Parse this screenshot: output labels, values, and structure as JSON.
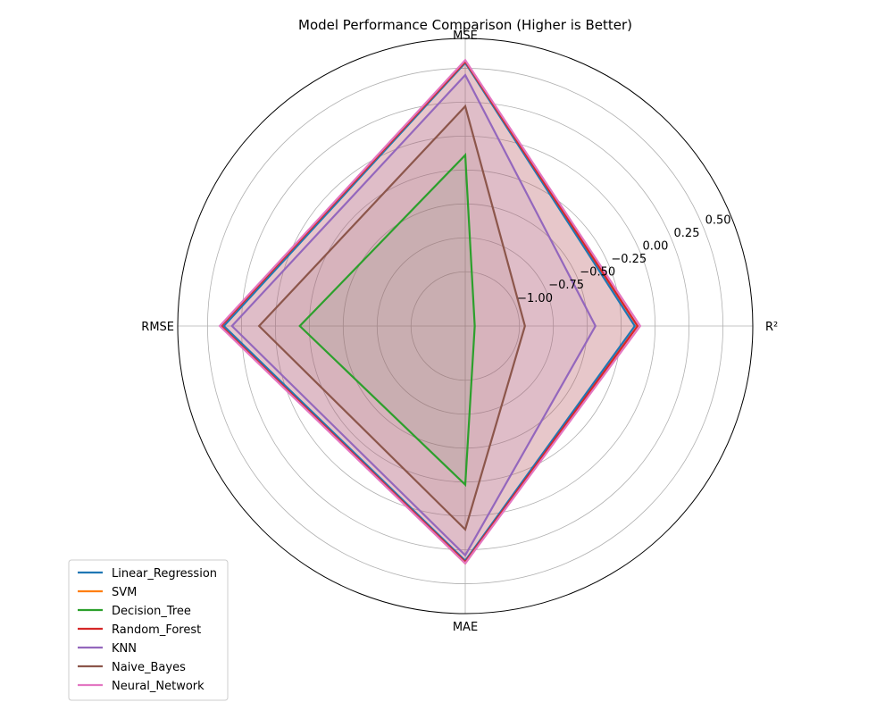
{
  "chart_data": {
    "type": "radar",
    "title": "Model Performance Comparison (Higher is Better)",
    "axes": [
      "R²",
      "MSE",
      "RMSE",
      "MAE"
    ],
    "rlim": [
      -1.4,
      0.72
    ],
    "radial_ticks": [
      -1.0,
      -0.75,
      -0.5,
      -0.25,
      0.0,
      0.25,
      0.5
    ],
    "radial_tick_labels": [
      "−1.00",
      "−0.75",
      "−0.50",
      "−0.25",
      "0.00",
      "0.25",
      "0.50"
    ],
    "grid": true,
    "legend_position": "lower-left",
    "series": [
      {
        "name": "Linear_Regression",
        "color": "#1f77b4",
        "values": [
          -0.15,
          0.54,
          0.38,
          0.33
        ]
      },
      {
        "name": "SVM",
        "color": "#ff7f0e",
        "values": [
          -0.13,
          0.55,
          0.4,
          0.35
        ]
      },
      {
        "name": "Decision_Tree",
        "color": "#2ca02c",
        "values": [
          -1.33,
          -0.14,
          -0.18,
          -0.23
        ]
      },
      {
        "name": "Random_Forest",
        "color": "#d62728",
        "values": [
          -0.13,
          0.55,
          0.4,
          0.34
        ]
      },
      {
        "name": "KNN",
        "color": "#9467bd",
        "values": [
          -0.44,
          0.45,
          0.32,
          0.29
        ]
      },
      {
        "name": "Naive_Bayes",
        "color": "#8c564b",
        "values": [
          -0.96,
          0.22,
          0.12,
          0.1
        ]
      },
      {
        "name": "Neural_Network",
        "color": "#e377c2",
        "values": [
          -0.11,
          0.56,
          0.41,
          0.35
        ]
      }
    ]
  }
}
